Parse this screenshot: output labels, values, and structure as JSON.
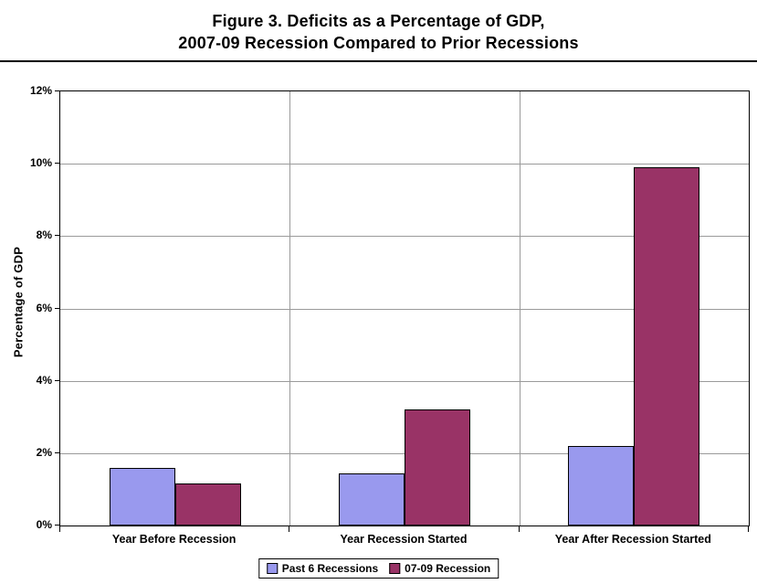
{
  "title": {
    "line1": "Figure 3. Deficits as a Percentage of GDP,",
    "line2": "2007-09 Recession Compared to Prior Recessions"
  },
  "chart_data": {
    "type": "bar",
    "title": "Figure 3. Deficits as a Percentage of GDP, 2007-09 Recession Compared to Prior Recessions",
    "categories": [
      "Year Before Recession",
      "Year Recession Started",
      "Year After Recession Started"
    ],
    "series": [
      {
        "name": "Past 6 Recessions",
        "color": "#9999EE",
        "values": [
          1.6,
          1.45,
          2.2
        ]
      },
      {
        "name": "07-09 Recession",
        "color": "#993366",
        "values": [
          1.15,
          3.2,
          9.9
        ]
      }
    ],
    "xlabel": "",
    "ylabel": "Percentage of GDP",
    "ylim": [
      0,
      12
    ],
    "ytick_step": 2,
    "ytick_labels": [
      "0%",
      "2%",
      "4%",
      "6%",
      "8%",
      "10%",
      "12%"
    ],
    "grid": true,
    "legend_position": "bottom",
    "bar_border_color": "#000000",
    "gridline_color": "#9a9a9a"
  }
}
